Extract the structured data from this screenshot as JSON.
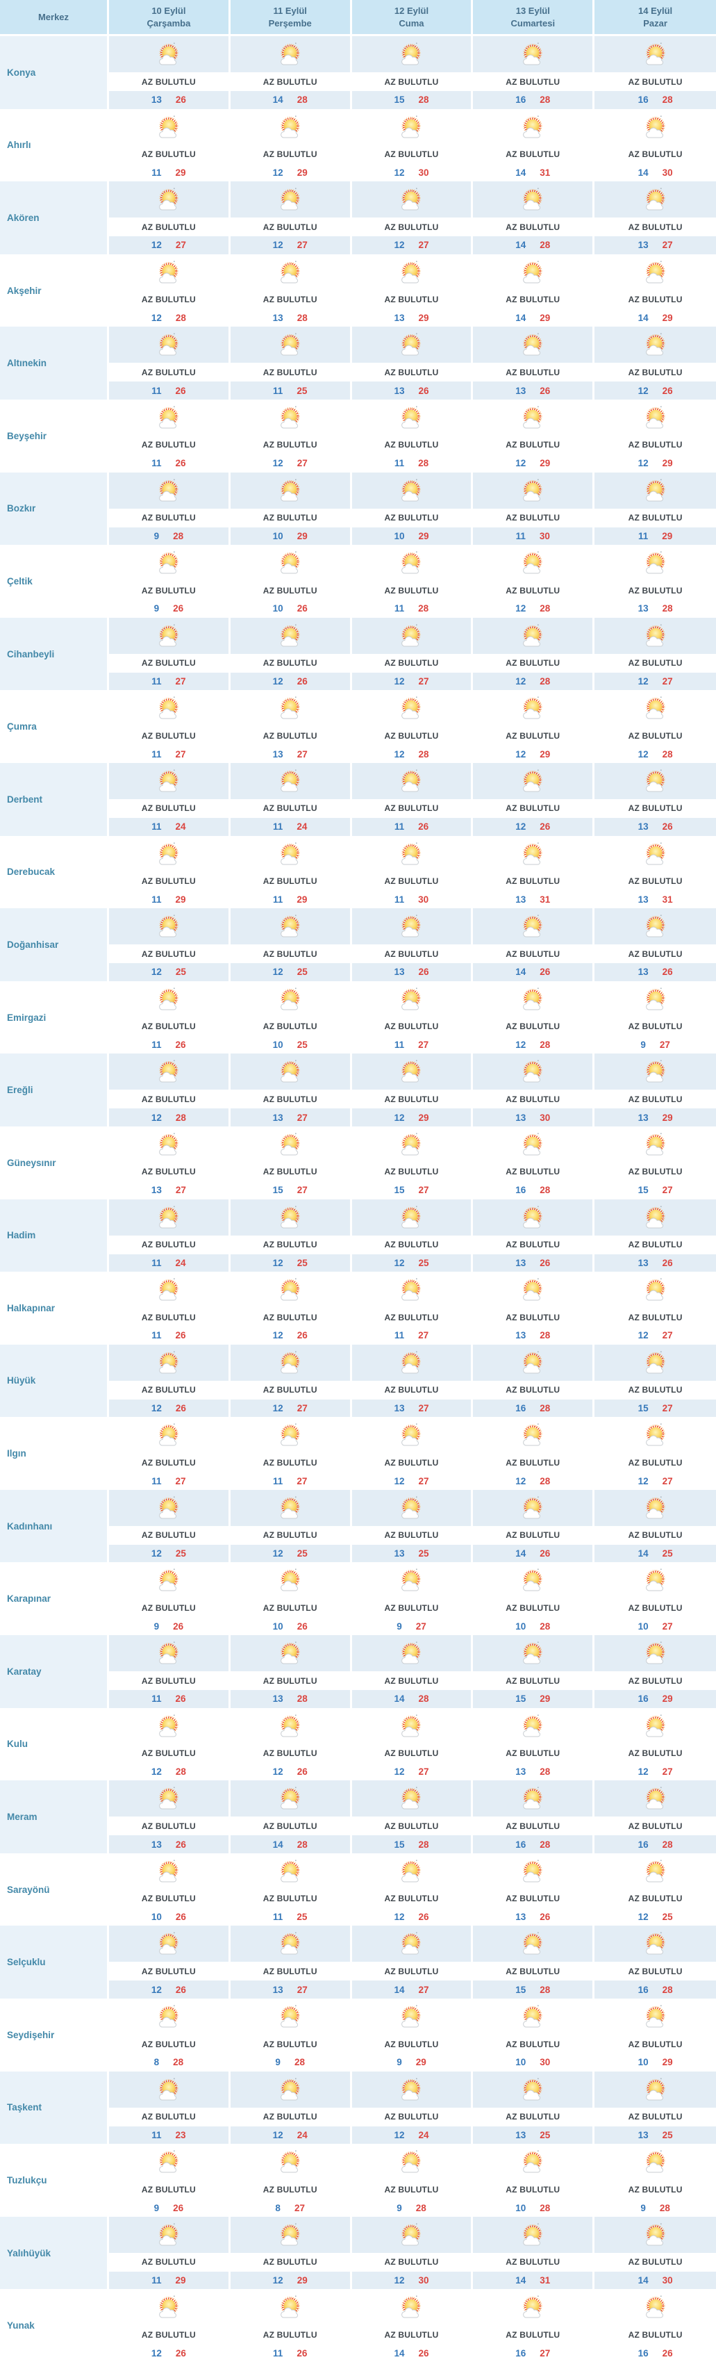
{
  "table": {
    "header": {
      "merkez_label": "Merkez",
      "days": [
        {
          "date": "10 Eylül",
          "weekday": "Çarşamba"
        },
        {
          "date": "11 Eylül",
          "weekday": "Perşembe"
        },
        {
          "date": "12 Eylül",
          "weekday": "Cuma"
        },
        {
          "date": "13 Eylül",
          "weekday": "Cumartesi"
        },
        {
          "date": "14 Eylül",
          "weekday": "Pazar"
        }
      ]
    },
    "condition_label": "AZ BULUTLU",
    "icon": "sun-behind-small-cloud-icon",
    "rows": [
      {
        "name": "Konya",
        "forecast": [
          [
            13,
            26
          ],
          [
            14,
            28
          ],
          [
            15,
            28
          ],
          [
            16,
            28
          ],
          [
            16,
            28
          ]
        ]
      },
      {
        "name": "Ahırlı",
        "forecast": [
          [
            11,
            29
          ],
          [
            12,
            29
          ],
          [
            12,
            30
          ],
          [
            14,
            31
          ],
          [
            14,
            30
          ]
        ]
      },
      {
        "name": "Akören",
        "forecast": [
          [
            12,
            27
          ],
          [
            12,
            27
          ],
          [
            12,
            27
          ],
          [
            14,
            28
          ],
          [
            13,
            27
          ]
        ]
      },
      {
        "name": "Akşehir",
        "forecast": [
          [
            12,
            28
          ],
          [
            13,
            28
          ],
          [
            13,
            29
          ],
          [
            14,
            29
          ],
          [
            14,
            29
          ]
        ]
      },
      {
        "name": "Altınekin",
        "forecast": [
          [
            11,
            26
          ],
          [
            11,
            25
          ],
          [
            13,
            26
          ],
          [
            13,
            26
          ],
          [
            12,
            26
          ]
        ]
      },
      {
        "name": "Beyşehir",
        "forecast": [
          [
            11,
            26
          ],
          [
            12,
            27
          ],
          [
            11,
            28
          ],
          [
            12,
            29
          ],
          [
            12,
            29
          ]
        ]
      },
      {
        "name": "Bozkır",
        "forecast": [
          [
            9,
            28
          ],
          [
            10,
            29
          ],
          [
            10,
            29
          ],
          [
            11,
            30
          ],
          [
            11,
            29
          ]
        ]
      },
      {
        "name": "Çeltik",
        "forecast": [
          [
            9,
            26
          ],
          [
            10,
            26
          ],
          [
            11,
            28
          ],
          [
            12,
            28
          ],
          [
            13,
            28
          ]
        ]
      },
      {
        "name": "Cihanbeyli",
        "forecast": [
          [
            11,
            27
          ],
          [
            12,
            26
          ],
          [
            12,
            27
          ],
          [
            12,
            28
          ],
          [
            12,
            27
          ]
        ]
      },
      {
        "name": "Çumra",
        "forecast": [
          [
            11,
            27
          ],
          [
            13,
            27
          ],
          [
            12,
            28
          ],
          [
            12,
            29
          ],
          [
            12,
            28
          ]
        ]
      },
      {
        "name": "Derbent",
        "forecast": [
          [
            11,
            24
          ],
          [
            11,
            24
          ],
          [
            11,
            26
          ],
          [
            12,
            26
          ],
          [
            13,
            26
          ]
        ]
      },
      {
        "name": "Derebucak",
        "forecast": [
          [
            11,
            29
          ],
          [
            11,
            29
          ],
          [
            11,
            30
          ],
          [
            13,
            31
          ],
          [
            13,
            31
          ]
        ]
      },
      {
        "name": "Doğanhisar",
        "forecast": [
          [
            12,
            25
          ],
          [
            12,
            25
          ],
          [
            13,
            26
          ],
          [
            14,
            26
          ],
          [
            13,
            26
          ]
        ]
      },
      {
        "name": "Emirgazi",
        "forecast": [
          [
            11,
            26
          ],
          [
            10,
            25
          ],
          [
            11,
            27
          ],
          [
            12,
            28
          ],
          [
            9,
            27
          ]
        ]
      },
      {
        "name": "Ereğli",
        "forecast": [
          [
            12,
            28
          ],
          [
            13,
            27
          ],
          [
            12,
            29
          ],
          [
            13,
            30
          ],
          [
            13,
            29
          ]
        ]
      },
      {
        "name": "Güneysınır",
        "forecast": [
          [
            13,
            27
          ],
          [
            15,
            27
          ],
          [
            15,
            27
          ],
          [
            16,
            28
          ],
          [
            15,
            27
          ]
        ]
      },
      {
        "name": "Hadim",
        "forecast": [
          [
            11,
            24
          ],
          [
            12,
            25
          ],
          [
            12,
            25
          ],
          [
            13,
            26
          ],
          [
            13,
            26
          ]
        ]
      },
      {
        "name": "Halkapınar",
        "forecast": [
          [
            11,
            26
          ],
          [
            12,
            26
          ],
          [
            11,
            27
          ],
          [
            13,
            28
          ],
          [
            12,
            27
          ]
        ]
      },
      {
        "name": "Hüyük",
        "forecast": [
          [
            12,
            26
          ],
          [
            12,
            27
          ],
          [
            13,
            27
          ],
          [
            16,
            28
          ],
          [
            15,
            27
          ]
        ]
      },
      {
        "name": "Ilgın",
        "forecast": [
          [
            11,
            27
          ],
          [
            11,
            27
          ],
          [
            12,
            27
          ],
          [
            12,
            28
          ],
          [
            12,
            27
          ]
        ]
      },
      {
        "name": "Kadınhanı",
        "forecast": [
          [
            12,
            25
          ],
          [
            12,
            25
          ],
          [
            13,
            25
          ],
          [
            14,
            26
          ],
          [
            14,
            25
          ]
        ]
      },
      {
        "name": "Karapınar",
        "forecast": [
          [
            9,
            26
          ],
          [
            10,
            26
          ],
          [
            9,
            27
          ],
          [
            10,
            28
          ],
          [
            10,
            27
          ]
        ]
      },
      {
        "name": "Karatay",
        "forecast": [
          [
            11,
            26
          ],
          [
            13,
            28
          ],
          [
            14,
            28
          ],
          [
            15,
            29
          ],
          [
            16,
            29
          ]
        ]
      },
      {
        "name": "Kulu",
        "forecast": [
          [
            12,
            28
          ],
          [
            12,
            26
          ],
          [
            12,
            27
          ],
          [
            13,
            28
          ],
          [
            12,
            27
          ]
        ]
      },
      {
        "name": "Meram",
        "forecast": [
          [
            13,
            26
          ],
          [
            14,
            28
          ],
          [
            15,
            28
          ],
          [
            16,
            28
          ],
          [
            16,
            28
          ]
        ]
      },
      {
        "name": "Sarayönü",
        "forecast": [
          [
            10,
            26
          ],
          [
            11,
            25
          ],
          [
            12,
            26
          ],
          [
            13,
            26
          ],
          [
            12,
            25
          ]
        ]
      },
      {
        "name": "Selçuklu",
        "forecast": [
          [
            12,
            26
          ],
          [
            13,
            27
          ],
          [
            14,
            27
          ],
          [
            15,
            28
          ],
          [
            16,
            28
          ]
        ]
      },
      {
        "name": "Seydişehir",
        "forecast": [
          [
            8,
            28
          ],
          [
            9,
            28
          ],
          [
            9,
            29
          ],
          [
            10,
            30
          ],
          [
            10,
            29
          ]
        ]
      },
      {
        "name": "Taşkent",
        "forecast": [
          [
            11,
            23
          ],
          [
            12,
            24
          ],
          [
            12,
            24
          ],
          [
            13,
            25
          ],
          [
            13,
            25
          ]
        ]
      },
      {
        "name": "Tuzlukçu",
        "forecast": [
          [
            9,
            26
          ],
          [
            8,
            27
          ],
          [
            9,
            28
          ],
          [
            10,
            28
          ],
          [
            9,
            28
          ]
        ]
      },
      {
        "name": "Yalıhüyük",
        "forecast": [
          [
            11,
            29
          ],
          [
            12,
            29
          ],
          [
            12,
            30
          ],
          [
            14,
            31
          ],
          [
            14,
            30
          ]
        ]
      },
      {
        "name": "Yunak",
        "forecast": [
          [
            12,
            26
          ],
          [
            11,
            26
          ],
          [
            14,
            26
          ],
          [
            16,
            27
          ],
          [
            16,
            26
          ]
        ]
      }
    ]
  },
  "colors": {
    "header_bg": "#cbe6f4",
    "header_text": "#47708c",
    "row_accent_bg": "#e3edf5",
    "name_accent_bg": "#e9f2f9",
    "district_text": "#4489a9",
    "condition_text": "#40474d",
    "min_temp": "#3779ba",
    "max_temp": "#db4540"
  }
}
